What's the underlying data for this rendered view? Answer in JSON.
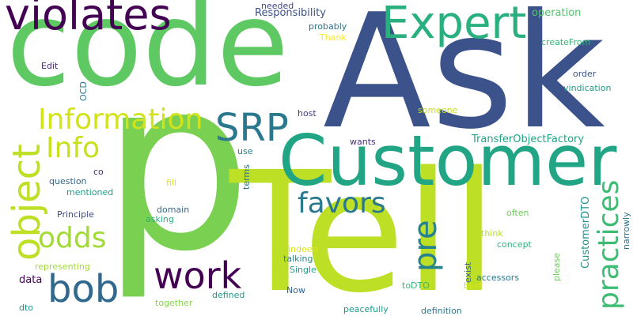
{
  "words": [
    {
      "text": "code",
      "color": "#5ec962"
    },
    {
      "text": "Ask",
      "color": "#3b528b"
    },
    {
      "text": "p",
      "color": "#7ad151"
    },
    {
      "text": "Tell",
      "color": "#bddf26"
    },
    {
      "text": "Customer",
      "color": "#21a585"
    },
    {
      "text": "violates",
      "color": "#440154"
    },
    {
      "text": "Expert",
      "color": "#2ab07f"
    },
    {
      "text": "Information",
      "color": "#d2e21b"
    },
    {
      "text": "SRP",
      "color": "#2a788e"
    },
    {
      "text": "Info",
      "color": "#c8e020"
    },
    {
      "text": "object",
      "color": "#bddf26"
    },
    {
      "text": "odds",
      "color": "#a2da37"
    },
    {
      "text": "bob",
      "color": "#31688e"
    },
    {
      "text": "work",
      "color": "#440154"
    },
    {
      "text": "favors",
      "color": "#2a788e"
    },
    {
      "text": "pre",
      "color": "#26828e"
    },
    {
      "text": "practices",
      "color": "#3fbc73"
    },
    {
      "text": "Responsibility",
      "color": "#3b528b"
    },
    {
      "text": "operation",
      "color": "#52c569"
    },
    {
      "text": "needed",
      "color": "#414487"
    },
    {
      "text": "probably",
      "color": "#2c728e"
    },
    {
      "text": "Thank",
      "color": "#fde725"
    },
    {
      "text": "Edit",
      "color": "#482878"
    },
    {
      "text": "createFrom",
      "color": "#35b779"
    },
    {
      "text": "order",
      "color": "#3b528b"
    },
    {
      "text": "vindication",
      "color": "#1f9a8a"
    },
    {
      "text": "OCD",
      "color": "#2a788e"
    },
    {
      "text": "host",
      "color": "#414487"
    },
    {
      "text": "someone",
      "color": "#c8e020"
    },
    {
      "text": "wants",
      "color": "#472d7b"
    },
    {
      "text": "TransferObjectFactory",
      "color": "#20a486"
    },
    {
      "text": "use",
      "color": "#26828e"
    },
    {
      "text": "co",
      "color": "#482878"
    },
    {
      "text": "question",
      "color": "#31688e"
    },
    {
      "text": "mentioned",
      "color": "#1f9e89"
    },
    {
      "text": "terms",
      "color": "#2c728e"
    },
    {
      "text": "fill",
      "color": "#dfe318"
    },
    {
      "text": "Principle",
      "color": "#3e4989"
    },
    {
      "text": "domain",
      "color": "#31688e"
    },
    {
      "text": "asking",
      "color": "#2db27d"
    },
    {
      "text": "CustomerDTO",
      "color": "#21918c"
    },
    {
      "text": "narrowly",
      "color": "#2c728e"
    },
    {
      "text": "often",
      "color": "#6ccd5a"
    },
    {
      "text": "think",
      "color": "#b5de2b"
    },
    {
      "text": "indeed",
      "color": "#dfe318"
    },
    {
      "text": "concept",
      "color": "#2db27d"
    },
    {
      "text": "please",
      "color": "#6ccd5a"
    },
    {
      "text": "exist",
      "color": "#355f8d"
    },
    {
      "text": "representing",
      "color": "#a2da37"
    },
    {
      "text": "talking",
      "color": "#23888e"
    },
    {
      "text": "Single",
      "color": "#1f9e89"
    },
    {
      "text": "data",
      "color": "#440154"
    },
    {
      "text": "accessors",
      "color": "#2a788e"
    },
    {
      "text": "best",
      "color": "#d2e21b"
    },
    {
      "text": "toDTO",
      "color": "#35b779"
    },
    {
      "text": "Now",
      "color": "#33638d"
    },
    {
      "text": "defined",
      "color": "#1f9a8a"
    },
    {
      "text": "together",
      "color": "#84d44b"
    },
    {
      "text": "dto",
      "color": "#21918c"
    },
    {
      "text": "peacefully",
      "color": "#1f9a8a"
    },
    {
      "text": "definition",
      "color": "#2a788e"
    }
  ]
}
